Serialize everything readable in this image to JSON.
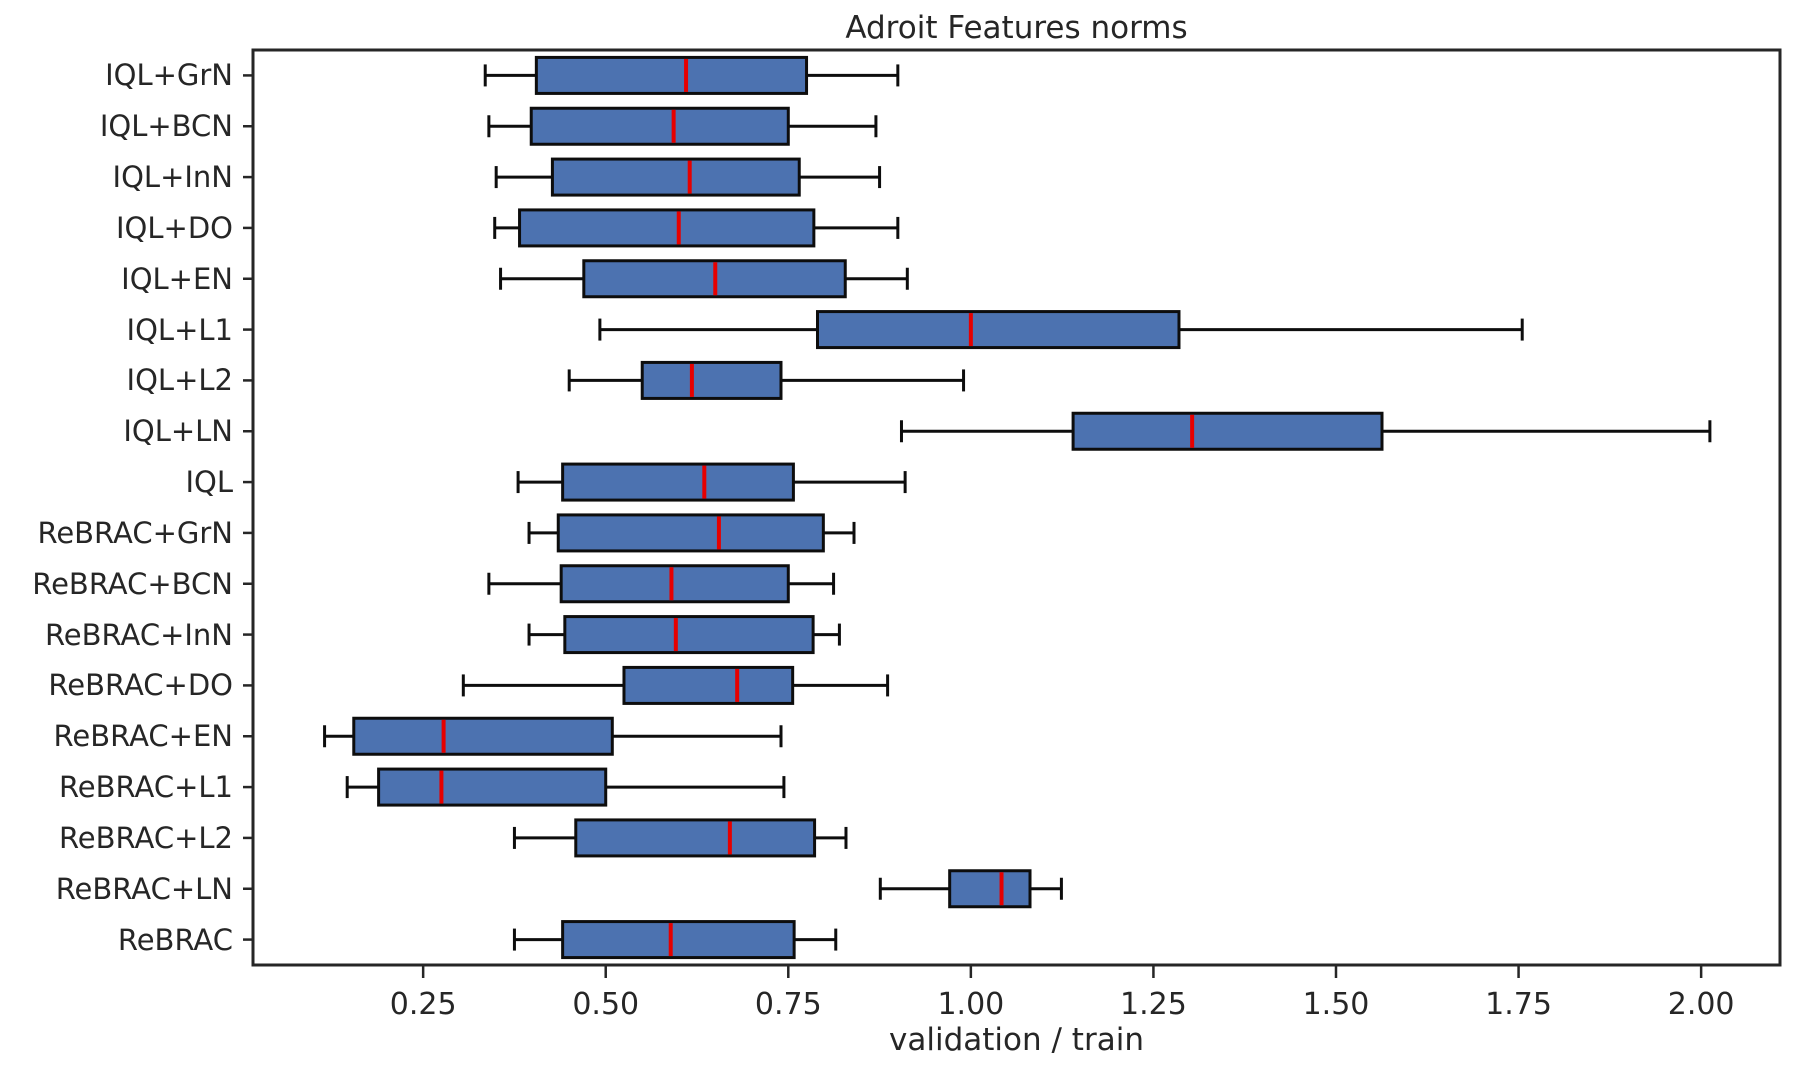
{
  "chart_data": {
    "type": "boxplot",
    "orientation": "horizontal",
    "title": "Adroit Features norms",
    "xlabel": "validation / train",
    "ylabel": "",
    "xlim": [
      0.017,
      2.108
    ],
    "x_ticks": [
      0.25,
      0.5,
      0.75,
      1.0,
      1.25,
      1.5,
      1.75,
      2.0
    ],
    "x_tick_labels": [
      "0.25",
      "0.50",
      "0.75",
      "1.00",
      "1.25",
      "1.50",
      "1.75",
      "2.00"
    ],
    "grid": false,
    "legend": "none",
    "colors": {
      "box_fill": "#4c72b0",
      "box_edge": "#0d0d0d",
      "whisker": "#0d0d0d",
      "median": "#e60000",
      "frame": "#262626",
      "text": "#262626"
    },
    "categories": [
      "IQL+GrN",
      "IQL+BCN",
      "IQL+InN",
      "IQL+DO",
      "IQL+EN",
      "IQL+L1",
      "IQL+L2",
      "IQL+LN",
      "IQL",
      "ReBRAC+GrN",
      "ReBRAC+BCN",
      "ReBRAC+InN",
      "ReBRAC+DO",
      "ReBRAC+EN",
      "ReBRAC+L1",
      "ReBRAC+L2",
      "ReBRAC+LN",
      "ReBRAC"
    ],
    "series": [
      {
        "label": "IQL+GrN",
        "whisker_low": 0.335,
        "q1": 0.405,
        "median": 0.61,
        "q3": 0.775,
        "whisker_high": 0.9
      },
      {
        "label": "IQL+BCN",
        "whisker_low": 0.34,
        "q1": 0.398,
        "median": 0.593,
        "q3": 0.75,
        "whisker_high": 0.87
      },
      {
        "label": "IQL+InN",
        "whisker_low": 0.35,
        "q1": 0.427,
        "median": 0.615,
        "q3": 0.765,
        "whisker_high": 0.875
      },
      {
        "label": "IQL+DO",
        "whisker_low": 0.348,
        "q1": 0.382,
        "median": 0.6,
        "q3": 0.785,
        "whisker_high": 0.9
      },
      {
        "label": "IQL+EN",
        "whisker_low": 0.356,
        "q1": 0.47,
        "median": 0.65,
        "q3": 0.828,
        "whisker_high": 0.913
      },
      {
        "label": "IQL+L1",
        "whisker_low": 0.492,
        "q1": 0.79,
        "median": 1.0,
        "q3": 1.285,
        "whisker_high": 1.755
      },
      {
        "label": "IQL+L2",
        "whisker_low": 0.45,
        "q1": 0.55,
        "median": 0.618,
        "q3": 0.74,
        "whisker_high": 0.99
      },
      {
        "label": "IQL+LN",
        "whisker_low": 0.905,
        "q1": 1.14,
        "median": 1.303,
        "q3": 1.563,
        "whisker_high": 2.012
      },
      {
        "label": "IQL",
        "whisker_low": 0.38,
        "q1": 0.441,
        "median": 0.635,
        "q3": 0.757,
        "whisker_high": 0.91
      },
      {
        "label": "ReBRAC+GrN",
        "whisker_low": 0.395,
        "q1": 0.435,
        "median": 0.655,
        "q3": 0.798,
        "whisker_high": 0.84
      },
      {
        "label": "ReBRAC+BCN",
        "whisker_low": 0.34,
        "q1": 0.439,
        "median": 0.59,
        "q3": 0.75,
        "whisker_high": 0.812
      },
      {
        "label": "ReBRAC+InN",
        "whisker_low": 0.395,
        "q1": 0.444,
        "median": 0.596,
        "q3": 0.784,
        "whisker_high": 0.82
      },
      {
        "label": "ReBRAC+DO",
        "whisker_low": 0.305,
        "q1": 0.525,
        "median": 0.68,
        "q3": 0.756,
        "whisker_high": 0.886
      },
      {
        "label": "ReBRAC+EN",
        "whisker_low": 0.115,
        "q1": 0.155,
        "median": 0.278,
        "q3": 0.509,
        "whisker_high": 0.74
      },
      {
        "label": "ReBRAC+L1",
        "whisker_low": 0.146,
        "q1": 0.189,
        "median": 0.275,
        "q3": 0.5,
        "whisker_high": 0.744
      },
      {
        "label": "ReBRAC+L2",
        "whisker_low": 0.375,
        "q1": 0.459,
        "median": 0.67,
        "q3": 0.786,
        "whisker_high": 0.829
      },
      {
        "label": "ReBRAC+LN",
        "whisker_low": 0.876,
        "q1": 0.971,
        "median": 1.042,
        "q3": 1.081,
        "whisker_high": 1.124
      },
      {
        "label": "ReBRAC",
        "whisker_low": 0.375,
        "q1": 0.441,
        "median": 0.589,
        "q3": 0.758,
        "whisker_high": 0.815
      }
    ]
  }
}
